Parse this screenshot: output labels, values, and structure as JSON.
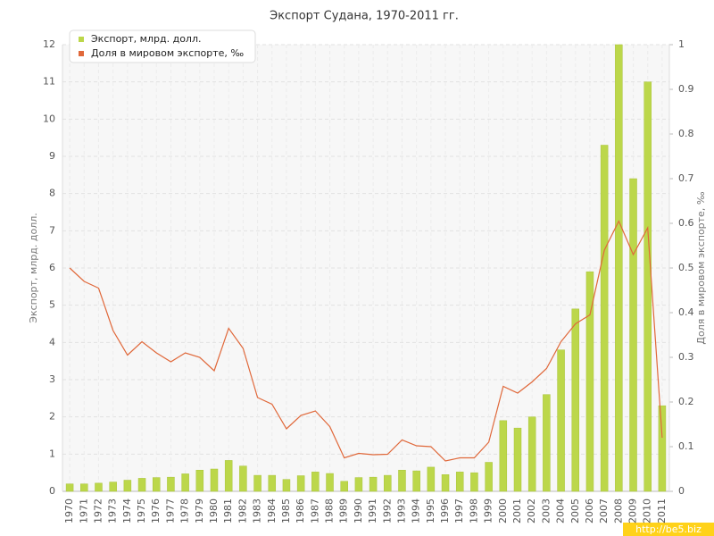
{
  "chart_data": {
    "type": "bar-line",
    "title": "Экспорт Судана, 1970-2011 гг.",
    "y_label": "Экспорт, млрд. долл.",
    "y2_label": "Доля в мировом экспорте, ‰",
    "watermark": "http://be5.biz",
    "categories": [
      "1970",
      "1971",
      "1972",
      "1973",
      "1974",
      "1975",
      "1976",
      "1977",
      "1978",
      "1979",
      "1980",
      "1981",
      "1982",
      "1983",
      "1984",
      "1985",
      "1986",
      "1987",
      "1988",
      "1989",
      "1990",
      "1991",
      "1992",
      "1993",
      "1994",
      "1995",
      "1996",
      "1997",
      "1998",
      "1999",
      "2000",
      "2001",
      "2002",
      "2003",
      "2004",
      "2005",
      "2006",
      "2007",
      "2008",
      "2009",
      "2010",
      "2011"
    ],
    "series": [
      {
        "name": "Экспорт, млрд. долл.",
        "color": "#bcd74a",
        "kind": "bar",
        "values": [
          0.2,
          0.2,
          0.22,
          0.25,
          0.3,
          0.35,
          0.37,
          0.38,
          0.47,
          0.57,
          0.6,
          0.83,
          0.68,
          0.43,
          0.43,
          0.32,
          0.42,
          0.52,
          0.48,
          0.27,
          0.37,
          0.38,
          0.43,
          0.57,
          0.55,
          0.65,
          0.45,
          0.52,
          0.5,
          0.78,
          1.9,
          1.7,
          2.0,
          2.6,
          3.8,
          4.9,
          5.9,
          9.3,
          12,
          8.4,
          11,
          2.3
        ]
      },
      {
        "name": "Доля в мировом экспорте, ‰",
        "color": "#e0683a",
        "kind": "line",
        "axis": "y2",
        "values": [
          0.5,
          0.47,
          0.455,
          0.36,
          0.305,
          0.335,
          0.31,
          0.29,
          0.31,
          0.3,
          0.27,
          0.365,
          0.32,
          0.21,
          0.195,
          0.14,
          0.17,
          0.18,
          0.145,
          0.075,
          0.085,
          0.082,
          0.083,
          0.115,
          0.102,
          0.1,
          0.068,
          0.075,
          0.075,
          0.11,
          0.235,
          0.22,
          0.245,
          0.275,
          0.335,
          0.375,
          0.395,
          0.54,
          0.605,
          0.53,
          0.59,
          0.12
        ]
      }
    ],
    "ylim": [
      0,
      12
    ],
    "yticks": [
      0,
      1,
      2,
      3,
      4,
      5,
      6,
      7,
      8,
      9,
      10,
      11,
      12
    ],
    "y2lim": [
      0,
      1
    ],
    "y2ticks": [
      0,
      0.1,
      0.2,
      0.3,
      0.4,
      0.5,
      0.6,
      0.7,
      0.8,
      0.9,
      1
    ],
    "grid": true,
    "legend": "top-left"
  }
}
